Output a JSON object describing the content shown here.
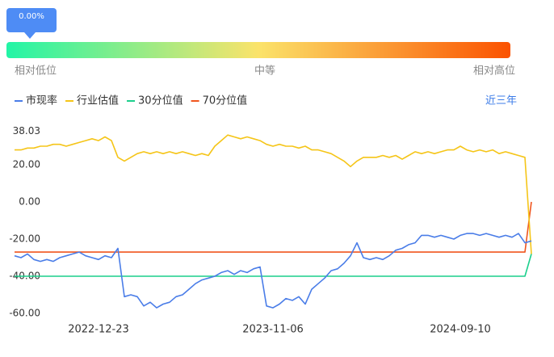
{
  "gauge": {
    "value_label": "0.00%",
    "labels": [
      "相对低位",
      "中等",
      "相对高位"
    ]
  },
  "range_button": "近三年",
  "chart_data": {
    "type": "line",
    "x": [
      null,
      null,
      null,
      null,
      null,
      null,
      null,
      null,
      null,
      null,
      null,
      null,
      null,
      "2022-12-23",
      null,
      null,
      null,
      null,
      null,
      null,
      null,
      null,
      null,
      null,
      null,
      null,
      null,
      null,
      null,
      null,
      null,
      null,
      null,
      null,
      null,
      null,
      null,
      null,
      null,
      null,
      "2023-11-06",
      null,
      null,
      null,
      null,
      null,
      null,
      null,
      null,
      null,
      null,
      null,
      null,
      null,
      null,
      null,
      null,
      null,
      null,
      null,
      null,
      null,
      null,
      null,
      null,
      null,
      null,
      null,
      null,
      "2024-09-10",
      null,
      null,
      null,
      null,
      null,
      null,
      null,
      null,
      null,
      null,
      null
    ],
    "series": [
      {
        "name": "市现率",
        "color": "#4a7de8",
        "values": [
          -29,
          -30,
          -28,
          -31,
          -32,
          -31,
          -32,
          -30,
          -29,
          -28,
          -27,
          -29,
          -30,
          -31,
          -29,
          -30,
          -25,
          -51,
          -50,
          -51,
          -56,
          -54,
          -57,
          -55,
          -54,
          -51,
          -50,
          -47,
          -44,
          -42,
          -41,
          -40,
          -38,
          -37,
          -39,
          -37,
          -38,
          -36,
          -35,
          -56,
          -57,
          -55,
          -52,
          -53,
          -51,
          -55,
          -47,
          -44,
          -41,
          -37,
          -36,
          -33,
          -29,
          -22,
          -30,
          -31,
          -30,
          -31,
          -29,
          -26,
          -25,
          -23,
          -22,
          -18,
          -18,
          -19,
          -18,
          -19,
          -20,
          -18,
          -17,
          -17,
          -18,
          -17,
          -18,
          -19,
          -18,
          -19,
          -17,
          -22,
          -21
        ]
      },
      {
        "name": "行业估值",
        "color": "#f5c518",
        "values": [
          28,
          28,
          29,
          29,
          30,
          30,
          31,
          31,
          30,
          31,
          32,
          33,
          34,
          33,
          35,
          33,
          24,
          22,
          24,
          26,
          27,
          26,
          27,
          26,
          27,
          26,
          27,
          26,
          25,
          26,
          25,
          30,
          33,
          36,
          35,
          34,
          35,
          34,
          33,
          31,
          30,
          31,
          30,
          30,
          29,
          30,
          28,
          28,
          27,
          26,
          24,
          22,
          19,
          22,
          24,
          24,
          24,
          25,
          24,
          25,
          23,
          25,
          27,
          26,
          27,
          26,
          27,
          28,
          28,
          30,
          28,
          27,
          28,
          27,
          28,
          26,
          27,
          26,
          25,
          24,
          -28
        ]
      },
      {
        "name": "30分位值",
        "color": "#1ccf8c",
        "values": [
          -40,
          -40,
          -40,
          -40,
          -40,
          -40,
          -40,
          -40,
          -40,
          -40,
          -40,
          -40,
          -40,
          -40,
          -40,
          -40,
          -40,
          -40,
          -40,
          -40,
          -40,
          -40,
          -40,
          -40,
          -40,
          -40,
          -40,
          -40,
          -40,
          -40,
          -40,
          -40,
          -40,
          -40,
          -40,
          -40,
          -40,
          -40,
          -40,
          -40,
          -40,
          -40,
          -40,
          -40,
          -40,
          -40,
          -40,
          -40,
          -40,
          -40,
          -40,
          -40,
          -40,
          -40,
          -40,
          -40,
          -40,
          -40,
          -40,
          -40,
          -40,
          -40,
          -40,
          -40,
          -40,
          -40,
          -40,
          -40,
          -40,
          -40,
          -40,
          -40,
          -40,
          -40,
          -40,
          -40,
          -40,
          -40,
          -40,
          -40,
          -28
        ]
      },
      {
        "name": "70分位值",
        "color": "#f0551e",
        "values": [
          -27,
          -27,
          -27,
          -27,
          -27,
          -27,
          -27,
          -27,
          -27,
          -27,
          -27,
          -27,
          -27,
          -27,
          -27,
          -27,
          -27,
          -27,
          -27,
          -27,
          -27,
          -27,
          -27,
          -27,
          -27,
          -27,
          -27,
          -27,
          -27,
          -27,
          -27,
          -27,
          -27,
          -27,
          -27,
          -27,
          -27,
          -27,
          -27,
          -27,
          -27,
          -27,
          -27,
          -27,
          -27,
          -27,
          -27,
          -27,
          -27,
          -27,
          -27,
          -27,
          -27,
          -27,
          -27,
          -27,
          -27,
          -27,
          -27,
          -27,
          -27,
          -27,
          -27,
          -27,
          -27,
          -27,
          -27,
          -27,
          -27,
          -27,
          -27,
          -27,
          -27,
          -27,
          -27,
          -27,
          -27,
          -27,
          -27,
          -27,
          0
        ]
      }
    ],
    "ylim": [
      -60,
      38.03
    ],
    "yticks": [
      {
        "value": -60,
        "label": "-60.00"
      },
      {
        "value": -40,
        "label": "-40.00"
      },
      {
        "value": -20,
        "label": "-20.00"
      },
      {
        "value": 0,
        "label": "0.00"
      },
      {
        "value": 20,
        "label": "20.00"
      },
      38.03
    ],
    "grid": false
  }
}
